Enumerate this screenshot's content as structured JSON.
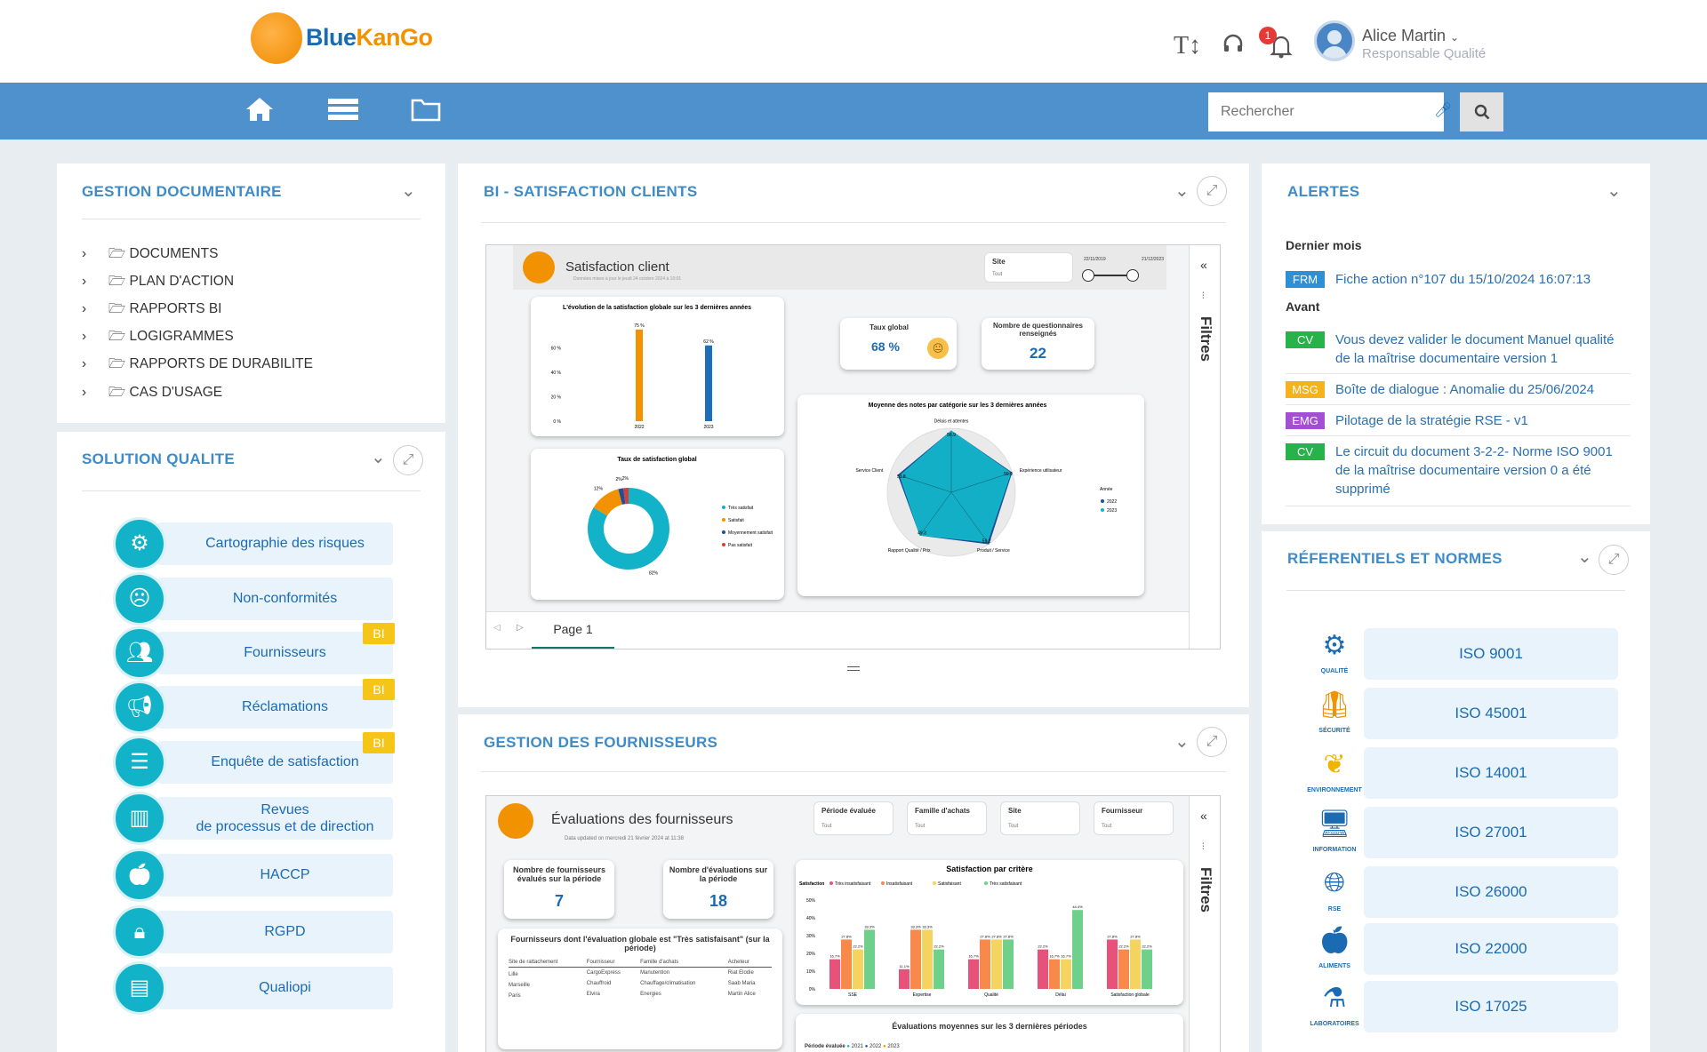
{
  "header": {
    "logo_text_a": "Blue",
    "logo_text_b": "KanGo",
    "notification_count": "1",
    "user_name": "Alice Martin",
    "user_role": "Responsable Qualité"
  },
  "nav": {
    "search_placeholder": "Rechercher"
  },
  "doc_panel": {
    "title": "GESTION DOCUMENTAIRE",
    "items": [
      "DOCUMENTS",
      "PLAN D'ACTION",
      "RAPPORTS BI",
      "LOGIGRAMMES",
      "RAPPORTS DE DURABILITE",
      "CAS D'USAGE"
    ]
  },
  "quality_panel": {
    "title": "SOLUTION QUALITE",
    "items": [
      {
        "label": "Cartographie des risques"
      },
      {
        "label": "Non-conformités"
      },
      {
        "label": "Fournisseurs",
        "badge": "BI"
      },
      {
        "label": "Réclamations",
        "badge": "BI"
      },
      {
        "label": "Enquête de satisfaction",
        "badge": "BI"
      },
      {
        "label_1": "Revues",
        "label_2": "de processus et de direction"
      },
      {
        "label": "HACCP"
      },
      {
        "label": "RGPD"
      },
      {
        "label": "Qualiopi"
      }
    ]
  },
  "bi_panel": {
    "title": "BI - SATISFACTION CLIENTS",
    "report_title": "Satisfaction client",
    "report_subtitle": "Données mises à jour le jeudi 24 octobre 2024 à 10:01",
    "site_label": "Site",
    "site_value": "Tout",
    "date_from": "22/11/2019",
    "date_to": "21/12/2023",
    "filters_label": "Filtres",
    "page_tab": "Page 1",
    "kpi_rate_title": "Taux global",
    "kpi_rate_value": "68 %",
    "kpi_count_title": "Nombre de questionnaires renseignés",
    "kpi_count_value": "22"
  },
  "chart_data": [
    {
      "type": "bar",
      "title": "L'évolution de la satisfaction globale sur les 3 dernières années",
      "categories": [
        "2022",
        "2023"
      ],
      "values": [
        75,
        62
      ],
      "value_labels": [
        "75 %",
        "62 %"
      ],
      "colors": [
        "#f39200",
        "#1f6fb8"
      ],
      "yticks": [
        "0 %",
        "20 %",
        "40 %",
        "60 %"
      ],
      "ylim": [
        0,
        80
      ]
    },
    {
      "type": "pie",
      "title": "Taux de satisfaction global",
      "labels": [
        "Très satisfait",
        "Satisfait",
        "Moyennement satisfait",
        "Pas satisfait"
      ],
      "values": [
        82,
        12,
        2,
        2
      ],
      "value_labels": [
        "82%",
        "12%",
        "2%",
        "2%"
      ],
      "colors": [
        "#12b3c8",
        "#f39200",
        "#1f4e9b",
        "#d2403a"
      ]
    },
    {
      "type": "radar",
      "title": "Moyenne des notes par catégorie sur les 3 dernières années",
      "axes": [
        "Délais et attentes",
        "Expérience utilisateur",
        "Produit / Service",
        "Rapport Qualité / Prix",
        "Service Client"
      ],
      "series": [
        {
          "name": "2022",
          "values": [
            56.9,
            59.0,
            59.2,
            49.3,
            51.8
          ]
        },
        {
          "name": "2023",
          "values": [
            56.9,
            58.0,
            57.0,
            49.3,
            50.0
          ]
        }
      ],
      "value_labels": [
        "56.9",
        "59.0",
        "59.2",
        "49.3",
        "51.8"
      ],
      "legend_title": "Année",
      "colors": [
        "#1f4e9b",
        "#12b3c8"
      ]
    },
    {
      "type": "bar",
      "title": "Satisfaction par critère",
      "legend_title": "Satisfaction",
      "categories": [
        "SSE",
        "Expertise",
        "Qualité",
        "Délai",
        "Satisfaction globale"
      ],
      "series": [
        {
          "name": "Très insatisfaisant",
          "values": [
            16.7,
            11.1,
            16.7,
            22.2,
            27.8
          ]
        },
        {
          "name": "Insatisfaisant",
          "values": [
            27.8,
            33.3,
            27.8,
            16.7,
            22.2
          ]
        },
        {
          "name": "Satisfaisant",
          "values": [
            22.2,
            33.3,
            27.8,
            16.7,
            27.8
          ]
        },
        {
          "name": "Très satisfaisant",
          "values": [
            33.3,
            22.2,
            27.8,
            44.4,
            22.2
          ]
        }
      ],
      "colors": [
        "#e8527a",
        "#f7894a",
        "#f4d35e",
        "#6fd08c"
      ],
      "yticks": [
        "0%",
        "10%",
        "20%",
        "30%",
        "40%",
        "50%"
      ],
      "ylim": [
        0,
        50
      ]
    }
  ],
  "suppliers_panel": {
    "title": "GESTION DES FOURNISSEURS",
    "report_title": "Évaluations des fournisseurs",
    "report_subtitle": "Data updated on mercredi 21 février 2024 at 11:38",
    "slicers": [
      "Période évaluée",
      "Famille d'achats",
      "Site",
      "Fournisseur"
    ],
    "slicer_value": "Tout",
    "filters_label": "Filtres",
    "kpi1_title": "Nombre de fournisseurs évalués sur la période",
    "kpi1_value": "7",
    "kpi2_title": "Nombre d'évaluations sur la période",
    "kpi2_value": "18",
    "table_title": "Fournisseurs dont l'évaluation globale est \"Très satisfaisant\" (sur la période)",
    "table_headers": [
      "Site de rattachement",
      "Fournisseur",
      "Famille d'achats",
      "Acheteur"
    ],
    "table_rows": [
      [
        "Lille",
        "CargoExpress",
        "Manutention",
        "Riat Elodie"
      ],
      [
        "Marseille",
        "Chauffroid",
        "Chauffage/climatisation",
        "Saab Maria"
      ],
      [
        "Paris",
        "Elvira",
        "Energies",
        "Martin Alice"
      ]
    ],
    "bottom_title": "Évaluations moyennes sur les 3 dernières périodes",
    "bottom_legend_title": "Période évaluée",
    "bottom_legend": [
      "2021",
      "2022",
      "2023"
    ]
  },
  "alerts_panel": {
    "title": "ALERTES",
    "section_last_month": "Dernier mois",
    "section_before": "Avant",
    "alerts": [
      {
        "tag": "FRM",
        "color": "#2d8fd5",
        "text": "Fiche action n°107 du 15/10/2024 16:07:13"
      },
      {
        "tag": "CV",
        "color": "#27b24a",
        "text": "Vous devez valider le document Manuel qualité de la maîtrise documentaire version 1"
      },
      {
        "tag": "MSG",
        "color": "#f5b21a",
        "text": "Boîte de dialogue : Anomalie du 25/06/2024"
      },
      {
        "tag": "EMG",
        "color": "#a24fd1",
        "text": "Pilotage de la stratégie RSE - v1"
      },
      {
        "tag": "CV",
        "color": "#27b24a",
        "text": "Le circuit du document 3-2-2- Norme ISO 9001 de la maîtrise documentaire version 0 a été supprimé"
      }
    ]
  },
  "standards_panel": {
    "title": "RÉFERENTIELS ET NORMES",
    "items": [
      {
        "label": "ISO 9001",
        "caption": "QUALITÉ"
      },
      {
        "label": "ISO 45001",
        "caption": "SÉCURITÉ"
      },
      {
        "label": "ISO 14001",
        "caption": "ENVIRONNEMENT"
      },
      {
        "label": "ISO 27001",
        "caption": "INFORMATION"
      },
      {
        "label": "ISO 26000",
        "caption": "RSE"
      },
      {
        "label": "ISO 22000",
        "caption": "ALIMENTS"
      },
      {
        "label": "ISO 17025",
        "caption": "LABORATOIRES"
      }
    ]
  }
}
